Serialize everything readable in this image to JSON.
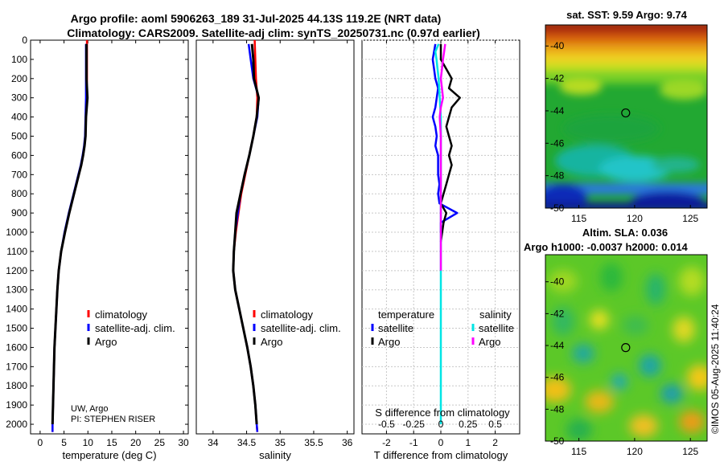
{
  "figure": {
    "title_line1": "Argo profile: aoml 5906263_189 31-Jul-2025 44.13S 119.2E (NRT data)",
    "title_line2": "Climatology: CARS2009. Satellite-adj clim: synTS_20250731.nc (0.97d earlier)",
    "credit": "©IMOS 05-Aug-2025 11:40:24",
    "institution": "UW, Argo",
    "pi": "PI: STEPHEN RISER"
  },
  "chart_data": [
    {
      "type": "line",
      "name": "temperature-profile",
      "xlabel": "temperature (deg C)",
      "ylabel": "",
      "xlim": [
        -2,
        31
      ],
      "ylim": [
        2050,
        0
      ],
      "xticks": [
        0,
        5,
        10,
        15,
        20,
        25,
        30
      ],
      "yticks": [
        0,
        100,
        200,
        300,
        400,
        500,
        600,
        700,
        800,
        900,
        1000,
        1100,
        1200,
        1300,
        1400,
        1500,
        1600,
        1700,
        1800,
        1900,
        2000
      ],
      "legend": [
        "climatology",
        "satellite-adj. clim.",
        "Argo"
      ],
      "legend_colors": [
        "#ff0000",
        "#0000ff",
        "#000000"
      ],
      "series": [
        {
          "name": "climatology",
          "color": "#ff0000",
          "depth": [
            0,
            100,
            200,
            300,
            400,
            500,
            550,
            600,
            650,
            700,
            800,
            900,
            1000,
            1100,
            1200,
            1300,
            1400,
            1500,
            1600,
            1700,
            1800,
            1900,
            2000,
            2040
          ],
          "values": [
            9.8,
            9.8,
            9.8,
            9.7,
            9.6,
            9.5,
            9.3,
            9.0,
            8.6,
            8.1,
            7.1,
            6.1,
            5.2,
            4.4,
            3.9,
            3.6,
            3.4,
            3.2,
            3.0,
            2.9,
            2.8,
            2.7,
            2.6,
            2.6
          ]
        },
        {
          "name": "satellite-adj. clim.",
          "color": "#0000ff",
          "depth": [
            20,
            100,
            200,
            300,
            400,
            500,
            550,
            600,
            650,
            700,
            800,
            900,
            1000,
            1100,
            1200,
            1300,
            1400,
            1500,
            1600,
            1700,
            1800,
            1900,
            2000,
            2040
          ],
          "values": [
            9.6,
            9.6,
            9.6,
            9.6,
            9.5,
            9.4,
            9.2,
            8.9,
            8.5,
            8.0,
            7.0,
            6.0,
            5.1,
            4.4,
            3.9,
            3.6,
            3.4,
            3.2,
            3.0,
            2.9,
            2.8,
            2.7,
            2.6,
            2.6
          ]
        },
        {
          "name": "Argo",
          "color": "#000000",
          "depth": [
            20,
            100,
            200,
            300,
            400,
            500,
            550,
            600,
            650,
            700,
            800,
            900,
            1000,
            1100,
            1200,
            1300,
            1400,
            1500,
            1600,
            1700,
            1800,
            1900,
            2000
          ],
          "values": [
            9.7,
            9.7,
            9.7,
            9.9,
            9.6,
            9.5,
            9.3,
            9.0,
            8.6,
            8.1,
            7.1,
            6.1,
            5.2,
            4.4,
            3.9,
            3.6,
            3.4,
            3.2,
            3.0,
            2.9,
            2.8,
            2.7,
            2.6
          ]
        }
      ]
    },
    {
      "type": "line",
      "name": "salinity-profile",
      "xlabel": "salinity",
      "xlim": [
        33.75,
        36.1
      ],
      "ylim": [
        2050,
        0
      ],
      "xticks": [
        34,
        34.5,
        35,
        35.5,
        36
      ],
      "legend": [
        "climatology",
        "satellite-adj. clim.",
        "Argo"
      ],
      "legend_colors": [
        "#ff0000",
        "#0000ff",
        "#000000"
      ],
      "series": [
        {
          "name": "climatology",
          "color": "#ff0000",
          "depth": [
            0,
            100,
            200,
            300,
            400,
            500,
            600,
            700,
            800,
            900,
            1000,
            1100,
            1200,
            1300,
            1400,
            1500,
            1600,
            1700,
            1800,
            1900,
            2000,
            2040
          ],
          "values": [
            34.62,
            34.63,
            34.64,
            34.66,
            34.65,
            34.6,
            34.54,
            34.48,
            34.42,
            34.38,
            34.34,
            34.31,
            34.3,
            34.33,
            34.39,
            34.45,
            34.51,
            34.56,
            34.6,
            34.63,
            34.65,
            34.66
          ]
        },
        {
          "name": "satellite-adj. clim.",
          "color": "#0000ff",
          "depth": [
            20,
            100,
            200,
            300,
            400,
            500,
            600,
            700,
            800,
            900,
            1000,
            1100,
            1200,
            1300,
            1400,
            1500,
            1600,
            1700,
            1800,
            1900,
            2000,
            2040
          ],
          "values": [
            34.53,
            34.56,
            34.6,
            34.68,
            34.66,
            34.6,
            34.54,
            34.47,
            34.41,
            34.37,
            34.33,
            34.31,
            34.3,
            34.33,
            34.39,
            34.45,
            34.51,
            34.56,
            34.6,
            34.63,
            34.65,
            34.66
          ]
        },
        {
          "name": "Argo",
          "color": "#000000",
          "depth": [
            20,
            100,
            200,
            300,
            400,
            500,
            600,
            700,
            800,
            900,
            1000,
            1100,
            1200,
            1300,
            1400,
            1500,
            1600,
            1700,
            1800,
            1900,
            2000
          ],
          "values": [
            34.58,
            34.6,
            34.61,
            34.68,
            34.65,
            34.6,
            34.54,
            34.47,
            34.41,
            34.35,
            34.33,
            34.31,
            34.3,
            34.33,
            34.39,
            34.45,
            34.51,
            34.56,
            34.6,
            34.63,
            34.65
          ]
        }
      ]
    },
    {
      "type": "line",
      "name": "difference-profile",
      "xlabel": "T difference from climatology",
      "xlabel2": "S difference from climatology",
      "xlim": [
        -2.9,
        2.9
      ],
      "ylim": [
        2050,
        0
      ],
      "xticks": [
        -2,
        -1,
        0,
        1,
        2
      ],
      "xticklabels": [
        "-2",
        "-1",
        "0",
        "1",
        "2"
      ],
      "xticks2": [
        -0.5,
        -0.25,
        0,
        0.25,
        0.5
      ],
      "xticklabels2": [
        "-0.5",
        "-0.25",
        "0",
        "0.25",
        "0.5"
      ],
      "legend_temperature_title": "temperature",
      "legend_salinity_title": "salinity",
      "legend_temperature": [
        "satellite",
        "Argo"
      ],
      "legend_salinity": [
        "satellite",
        "Argo"
      ],
      "legend_temperature_colors": [
        "#0000ff",
        "#000000"
      ],
      "legend_salinity_colors": [
        "#00e5e5",
        "#ff00ff"
      ],
      "series": [
        {
          "name": "T satellite",
          "color": "#0000ff",
          "depth": [
            20,
            100,
            150,
            200,
            250,
            300,
            350,
            400,
            450,
            500,
            550,
            600,
            650,
            700,
            750,
            800,
            850,
            900,
            950,
            1000
          ],
          "values": [
            -0.2,
            -0.3,
            -0.25,
            -0.2,
            -0.1,
            -0.15,
            -0.2,
            -0.3,
            -0.2,
            -0.15,
            -0.2,
            -0.1,
            -0.1,
            -0.1,
            -0.05,
            -0.1,
            -0.05,
            0.6,
            0.0,
            0.0
          ]
        },
        {
          "name": "T Argo",
          "color": "#000000",
          "depth": [
            20,
            100,
            150,
            200,
            250,
            300,
            350,
            400,
            450,
            500,
            550,
            600,
            650,
            700,
            750,
            800,
            850,
            900,
            950,
            1000,
            1050
          ],
          "values": [
            0.0,
            0.0,
            0.2,
            0.4,
            0.3,
            0.7,
            0.4,
            0.3,
            0.2,
            0.3,
            0.4,
            0.3,
            0.4,
            0.3,
            0.2,
            0.1,
            0.0,
            0.2,
            0.1,
            0.05,
            0.0
          ]
        },
        {
          "name": "S satellite",
          "color": "#00e5e5",
          "depth": [
            20,
            60,
            100,
            150,
            200,
            300,
            400,
            500,
            600,
            700,
            800,
            900,
            1000,
            1200,
            1500,
            1800,
            2000
          ],
          "values": [
            -0.02,
            -0.05,
            -0.04,
            -0.03,
            -0.02,
            -0.01,
            0.0,
            0.0,
            0.0,
            0.0,
            0.0,
            0.0,
            0.0,
            0.0,
            0.0,
            0.0,
            0.0
          ]
        },
        {
          "name": "S Argo",
          "color": "#ff00ff",
          "depth": [
            20,
            60,
            100,
            150,
            200,
            250,
            300,
            350,
            400,
            500,
            600,
            700,
            800,
            900,
            1000,
            1100,
            1200
          ],
          "values": [
            0.04,
            0.03,
            0.02,
            0.01,
            0.0,
            0.01,
            0.02,
            0.0,
            -0.01,
            0.0,
            0.0,
            0.0,
            0.0,
            0.0,
            0.0,
            0.0,
            0.0
          ]
        }
      ]
    },
    {
      "type": "heatmap",
      "name": "sst-map",
      "title": "sat. SST: 9.59 Argo: 9.74",
      "xlim": [
        112,
        126.5
      ],
      "ylim": [
        -50,
        -38.7
      ],
      "xticks": [
        115,
        120,
        125
      ],
      "yticks": [
        -40,
        -42,
        -44,
        -46,
        -48,
        -50
      ],
      "marker": {
        "lon": 119.2,
        "lat": -44.13
      }
    },
    {
      "type": "heatmap",
      "name": "sla-map",
      "title": "Altim. SLA: 0.036",
      "subtitle": "Argo h1000: -0.0037 h2000: 0.014",
      "xlim": [
        112,
        126.5
      ],
      "ylim": [
        -50,
        -38.3
      ],
      "xticks": [
        115,
        120,
        125
      ],
      "yticks": [
        -40,
        -42,
        -44,
        -46,
        -48,
        -50
      ],
      "marker": {
        "lon": 119.2,
        "lat": -44.13
      }
    }
  ]
}
